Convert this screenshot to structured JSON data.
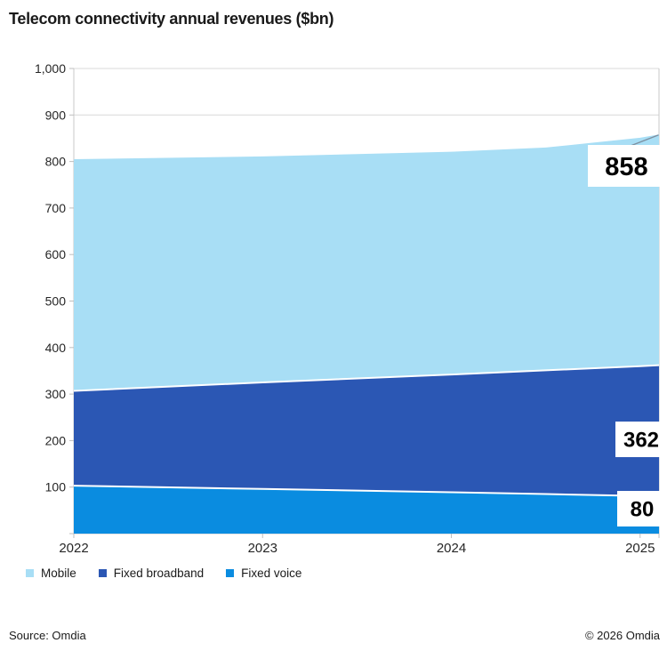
{
  "title": "Telecom connectivity annual revenues ($bn)",
  "legend": {
    "items": [
      {
        "label": "Mobile",
        "color": "#a8def5"
      },
      {
        "label": "Fixed broadband",
        "color": "#2b57b4"
      },
      {
        "label": "Fixed voice",
        "color": "#0a8ce0"
      }
    ]
  },
  "footer": {
    "source": "Source: Omdia",
    "copyright": "© 2026 Omdia"
  },
  "chart_data": {
    "type": "area",
    "stacked": true,
    "title": "Telecom connectivity annual revenues ($bn)",
    "xlabel": "",
    "ylabel": "",
    "ylim": [
      0,
      1000
    ],
    "grid": true,
    "legend_position": "bottom",
    "x_tick_labels": [
      "2022",
      "2023",
      "2024",
      "2025"
    ],
    "y_tick_labels": [
      "100",
      "200",
      "300",
      "400",
      "500",
      "600",
      "700",
      "800",
      "900",
      "1,000"
    ],
    "x_years": [
      2022,
      2023,
      2024,
      2025
    ],
    "boundary_x": [
      2022,
      2023,
      2024,
      2024.5,
      2025,
      2025.1
    ],
    "boundaries": {
      "fixed_voice_top": [
        103,
        96,
        89,
        85,
        81,
        80
      ],
      "fixed_broadband_top": [
        307,
        325,
        342,
        351,
        360,
        362
      ],
      "mobile_top_total": [
        805,
        811,
        821,
        830,
        851,
        858
      ]
    },
    "series": [
      {
        "name": "Fixed voice",
        "color": "#0a8ce0",
        "values_by_year": [
          103,
          96,
          89,
          80
        ],
        "end_label": "80"
      },
      {
        "name": "Fixed broadband",
        "color": "#2b57b4",
        "values_by_year": [
          204,
          229,
          253,
          282
        ],
        "end_label": "362"
      },
      {
        "name": "Mobile",
        "color": "#a8def5",
        "values_by_year": [
          498,
          486,
          479,
          496
        ],
        "end_label": "858"
      }
    ],
    "end_value_labels": {
      "total_mobile_top": "858",
      "fixed_broadband_top": "362",
      "fixed_voice_top": "80"
    },
    "colors": {
      "grid": "#d9d9d9",
      "axis_border": "#c9c9c9",
      "tick": "#bfbfbf",
      "separator_stroke": "#ffffff",
      "leader_line": "#7d8fa0",
      "axis_text": "#262626",
      "callout_text": "#000000",
      "callout_bg": "#ffffff"
    }
  }
}
